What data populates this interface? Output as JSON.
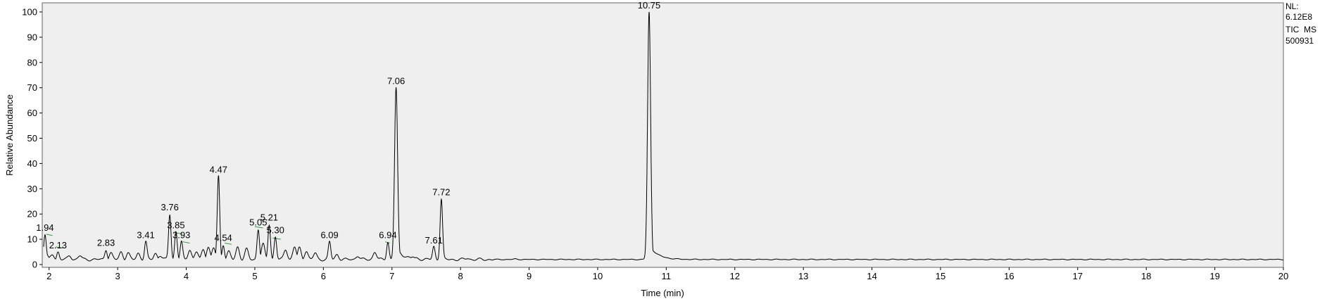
{
  "info": {
    "nl_label": "NL:",
    "nl_value": "6.12E8",
    "scan_filter": "TIC  MS",
    "sample_id": "500931"
  },
  "colors": {
    "plot_background": "#efefef",
    "trace": "#000000",
    "baseline_marks": "#2a9d3a"
  },
  "chart_data": {
    "type": "line",
    "title": "",
    "xlabel": "Time (min)",
    "ylabel": "Relative Abundance",
    "xlim": [
      1.9,
      20
    ],
    "ylim": [
      0,
      100
    ],
    "x_ticks": [
      2,
      3,
      4,
      5,
      6,
      7,
      8,
      9,
      10,
      11,
      12,
      13,
      14,
      15,
      16,
      17,
      18,
      19,
      20
    ],
    "y_ticks": [
      0,
      10,
      20,
      30,
      40,
      50,
      60,
      70,
      80,
      90,
      100
    ],
    "grid": false,
    "legend": "none",
    "peaks": [
      {
        "rt": 1.94,
        "label": "1.94",
        "height": 12
      },
      {
        "rt": 2.13,
        "label": "2.13",
        "height": 5
      },
      {
        "rt": 2.83,
        "label": "2.83",
        "height": 6
      },
      {
        "rt": 3.41,
        "label": "3.41",
        "height": 9
      },
      {
        "rt": 3.76,
        "label": "3.76",
        "height": 20
      },
      {
        "rt": 3.85,
        "label": "3.85",
        "height": 13
      },
      {
        "rt": 3.93,
        "label": "3.93",
        "height": 9
      },
      {
        "rt": 4.47,
        "label": "4.47",
        "height": 35
      },
      {
        "rt": 4.54,
        "label": "4.54",
        "height": 8
      },
      {
        "rt": 5.05,
        "label": "5.05",
        "height": 14
      },
      {
        "rt": 5.21,
        "label": "5.21",
        "height": 16
      },
      {
        "rt": 5.3,
        "label": "5.30",
        "height": 11
      },
      {
        "rt": 6.09,
        "label": "6.09",
        "height": 9
      },
      {
        "rt": 6.94,
        "label": "6.94",
        "height": 9
      },
      {
        "rt": 7.06,
        "label": "7.06",
        "height": 70
      },
      {
        "rt": 7.61,
        "label": "7.61",
        "height": 7
      },
      {
        "rt": 7.72,
        "label": "7.72",
        "height": 26
      },
      {
        "rt": 10.75,
        "label": "10.75",
        "height": 100
      }
    ],
    "minor_peaks": [
      {
        "rt": 2.05,
        "height": 4
      },
      {
        "rt": 2.3,
        "height": 3.5
      },
      {
        "rt": 2.45,
        "height": 3.5
      },
      {
        "rt": 2.9,
        "height": 4.5
      },
      {
        "rt": 3.05,
        "height": 5
      },
      {
        "rt": 3.15,
        "height": 4.5
      },
      {
        "rt": 3.3,
        "height": 4.5
      },
      {
        "rt": 3.55,
        "height": 4.5
      },
      {
        "rt": 3.62,
        "height": 3.5
      },
      {
        "rt": 4.05,
        "height": 6
      },
      {
        "rt": 4.15,
        "height": 5
      },
      {
        "rt": 4.25,
        "height": 6
      },
      {
        "rt": 4.32,
        "height": 7
      },
      {
        "rt": 4.4,
        "height": 6.5
      },
      {
        "rt": 4.62,
        "height": 5
      },
      {
        "rt": 4.75,
        "height": 7
      },
      {
        "rt": 4.88,
        "height": 6
      },
      {
        "rt": 5.12,
        "height": 8
      },
      {
        "rt": 5.45,
        "height": 6
      },
      {
        "rt": 5.58,
        "height": 7
      },
      {
        "rt": 5.65,
        "height": 6.5
      },
      {
        "rt": 5.75,
        "height": 5.5
      },
      {
        "rt": 5.88,
        "height": 4.5
      },
      {
        "rt": 6.2,
        "height": 4
      },
      {
        "rt": 6.5,
        "height": 3.5
      },
      {
        "rt": 6.75,
        "height": 5
      },
      {
        "rt": 7.3,
        "height": 3
      },
      {
        "rt": 8.1,
        "height": 2.5
      },
      {
        "rt": 8.8,
        "height": 2.2
      }
    ],
    "baseline_level": 2
  }
}
